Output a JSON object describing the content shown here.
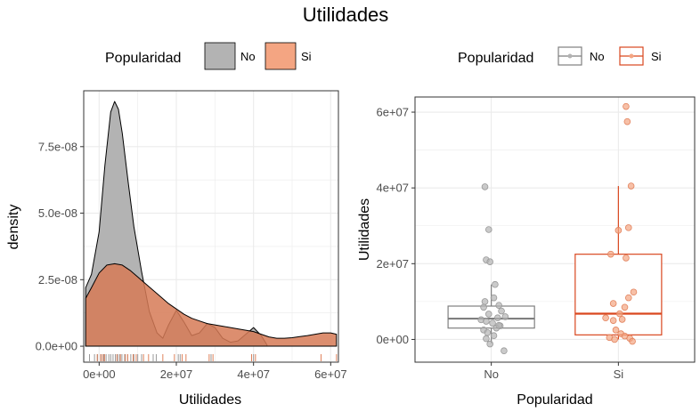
{
  "title": "Utilidades",
  "colors": {
    "no": "#b3b3b3",
    "si": "#f4a582",
    "si_box": "#d9471f",
    "no_box": "#7f7f7f",
    "grid": "#ebebeb",
    "density_fill": "#d67a56"
  },
  "chart_data": [
    {
      "type": "density",
      "xlabel": "Utilidades",
      "ylabel": "density",
      "xlim": [
        -4000000,
        62000000
      ],
      "ylim": [
        -6e-09,
        9.6e-08
      ],
      "x_ticks": [
        0,
        20000000,
        40000000,
        60000000
      ],
      "x_tick_labels": [
        "0e+00",
        "2e+07",
        "4e+07",
        "6e+07"
      ],
      "y_ticks": [
        0,
        2.5e-08,
        5e-08,
        7.5e-08
      ],
      "y_tick_labels": [
        "0.0e+00",
        "2.5e-08",
        "5.0e-08",
        "7.5e-08"
      ],
      "legend": {
        "title": "Popularidad",
        "entries": [
          "No",
          "Si"
        ],
        "position": "top"
      },
      "series": [
        {
          "name": "No",
          "x": [
            -3500000,
            -2000000,
            0,
            1500000,
            3000000,
            4000000,
            5000000,
            6000000,
            7500000,
            9000000,
            11000000,
            13000000,
            15000000,
            16500000,
            18000000,
            20000000,
            22000000,
            24000000,
            26000000,
            28000000,
            30000000,
            32000000,
            34000000,
            36000000,
            38000000,
            40000000,
            42000000,
            43500000
          ],
          "y": [
            2.2e-08,
            2.7e-08,
            4.3e-08,
            6.8e-08,
            8.8e-08,
            9.2e-08,
            8.9e-08,
            8e-08,
            6.2e-08,
            4.5e-08,
            2.8e-08,
            1.3e-08,
            5e-09,
            3e-09,
            8e-09,
            1.35e-08,
            9e-09,
            4e-09,
            5e-09,
            8.5e-09,
            7e-09,
            3e-09,
            1.5e-09,
            2e-09,
            4.5e-09,
            7e-09,
            4e-09,
            5e-10
          ]
        },
        {
          "name": "Si",
          "x": [
            -3500000,
            -2000000,
            0,
            2000000,
            4000000,
            6000000,
            8000000,
            10000000,
            12000000,
            14000000,
            16000000,
            18000000,
            20000000,
            22000000,
            24000000,
            26000000,
            28000000,
            30000000,
            32000000,
            34000000,
            36000000,
            38000000,
            40000000,
            42000000,
            44000000,
            46000000,
            48000000,
            50000000,
            52000000,
            54000000,
            56000000,
            58000000,
            60000000,
            61500000
          ],
          "y": [
            1.8e-08,
            2.2e-08,
            2.75e-08,
            3.05e-08,
            3.1e-08,
            3.05e-08,
            2.85e-08,
            2.6e-08,
            2.35e-08,
            2.1e-08,
            1.85e-08,
            1.6e-08,
            1.4e-08,
            1.2e-08,
            1.05e-08,
            9.5e-09,
            8.5e-09,
            8e-09,
            7.5e-09,
            7e-09,
            6.5e-09,
            6e-09,
            5.5e-09,
            4.5e-09,
            3.5e-09,
            3e-09,
            3e-09,
            3.2e-09,
            3.6e-09,
            4e-09,
            4.5e-09,
            5e-09,
            5e-09,
            4.5e-09
          ]
        }
      ],
      "rug_no": [
        -2500000,
        -1200000,
        -400000,
        500000,
        1200000,
        1800000,
        2500000,
        3000000,
        3600000,
        4200000,
        4800000,
        5300000,
        5900000,
        6600000,
        7400000,
        8200000,
        9000000,
        10000000,
        11000000,
        14000000,
        14800000,
        20500000,
        21000000,
        29000000,
        40000000
      ],
      "rug_si": [
        -500000,
        400000,
        900000,
        1400000,
        4600000,
        5500000,
        6800000,
        7400000,
        8800000,
        9600000,
        11500000,
        12800000,
        16500000,
        19500000,
        21500000,
        22500000,
        28500000,
        29500000,
        39500000,
        40500000,
        57500000,
        61500000
      ]
    },
    {
      "type": "box",
      "xlabel": "Popularidad",
      "ylabel": "Utilidades",
      "categories": [
        "No",
        "Si"
      ],
      "ylim": [
        -6000000,
        64000000
      ],
      "y_ticks": [
        0,
        20000000,
        40000000,
        60000000
      ],
      "y_tick_labels": [
        "0e+00",
        "2e+07",
        "4e+07",
        "6e+07"
      ],
      "legend": {
        "title": "Popularidad",
        "entries": [
          "No",
          "Si"
        ],
        "position": "top"
      },
      "boxes": [
        {
          "name": "No",
          "q1": 3000000,
          "median": 5500000,
          "q3": 8800000,
          "whisker_low": -1000000,
          "whisker_high": 14500000
        },
        {
          "name": "Si",
          "q1": 1200000,
          "median": 6800000,
          "q3": 22500000,
          "whisker_low": 0,
          "whisker_high": 40500000
        }
      ],
      "points": {
        "No": [
          [
            0.95,
            40300000
          ],
          [
            0.98,
            29000000
          ],
          [
            0.96,
            21000000
          ],
          [
            0.99,
            20500000
          ],
          [
            1.03,
            14500000
          ],
          [
            1.02,
            11000000
          ],
          [
            0.95,
            10000000
          ],
          [
            1.06,
            9000000
          ],
          [
            0.94,
            8500000
          ],
          [
            1.08,
            7500000
          ],
          [
            0.98,
            6700000
          ],
          [
            1.11,
            6000000
          ],
          [
            1.05,
            5700000
          ],
          [
            0.92,
            5200000
          ],
          [
            0.96,
            4800000
          ],
          [
            1.01,
            4300000
          ],
          [
            1.07,
            3600000
          ],
          [
            1.04,
            3000000
          ],
          [
            0.94,
            2500000
          ],
          [
            0.97,
            1800000
          ],
          [
            1.02,
            1000000
          ],
          [
            0.96,
            200000
          ],
          [
            0.99,
            -1200000
          ],
          [
            1.1,
            -3000000
          ],
          [
            1.06,
            3700000
          ]
        ],
        "Si": [
          [
            2.06,
            61500000
          ],
          [
            2.07,
            57500000
          ],
          [
            2.1,
            40500000
          ],
          [
            2.08,
            29500000
          ],
          [
            2.0,
            28800000
          ],
          [
            1.94,
            22500000
          ],
          [
            2.06,
            21500000
          ],
          [
            2.12,
            12500000
          ],
          [
            2.08,
            11000000
          ],
          [
            1.96,
            9500000
          ],
          [
            2.05,
            8500000
          ],
          [
            2.01,
            6800000
          ],
          [
            1.9,
            5700000
          ],
          [
            2.03,
            5300000
          ],
          [
            1.96,
            5000000
          ],
          [
            1.98,
            2500000
          ],
          [
            2.02,
            1500000
          ],
          [
            2.05,
            900000
          ],
          [
            1.93,
            500000
          ],
          [
            2.09,
            300000
          ],
          [
            1.97,
            0
          ],
          [
            2.11,
            -500000
          ]
        ]
      }
    }
  ]
}
